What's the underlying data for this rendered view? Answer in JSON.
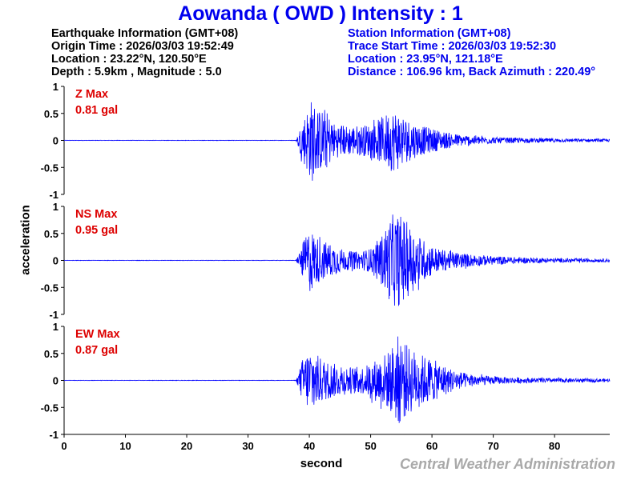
{
  "title": "Aowanda ( OWD ) Intensity : 1",
  "earthquake": {
    "header": "Earthquake Information (GMT+08)",
    "origin_time": "Origin Time : 2026/03/03 19:52:49",
    "location": "Location : 23.22°N, 120.50°E",
    "depth_magnitude": "Depth : 5.9km , Magnitude : 5.0"
  },
  "station": {
    "header": "Station Information (GMT+08)",
    "trace_start": "Trace Start Time : 2026/03/03 19:52:30",
    "location": "Location : 23.95°N, 121.18°E",
    "distance": "Distance : 106.96 km, Back Azimuth : 220.49°"
  },
  "agency": "Central Weather Administration",
  "colors": {
    "title": "#0000ee",
    "trace": "#0000ff",
    "annotation": "#dd0000",
    "agency": "#a9a9a9"
  },
  "chart_data": {
    "type": "line",
    "xlabel": "second",
    "ylabel": "acceleration",
    "xlim": [
      0,
      89
    ],
    "ylim": [
      -1,
      1
    ],
    "x_ticks": [
      0,
      10,
      20,
      30,
      40,
      50,
      60,
      70,
      80
    ],
    "y_tick_labels": [
      "1",
      "0.5",
      "0",
      "-0.5",
      "-1"
    ],
    "y_tick_values": [
      1,
      0.5,
      0,
      -0.5,
      -1
    ],
    "sample_interval_s": 0.05,
    "series": [
      {
        "name": "Z",
        "label": "Z Max",
        "max_label": "0.81 gal",
        "max_gal": 0.81,
        "onset_s": 38.2,
        "envelope": [
          [
            0,
            0.004
          ],
          [
            37.8,
            0.004
          ],
          [
            38.2,
            0.12
          ],
          [
            38.8,
            0.35
          ],
          [
            40.4,
            0.8
          ],
          [
            41.5,
            0.55
          ],
          [
            42.5,
            0.6
          ],
          [
            44,
            0.33
          ],
          [
            46,
            0.28
          ],
          [
            48,
            0.28
          ],
          [
            50,
            0.3
          ],
          [
            52,
            0.45
          ],
          [
            53.5,
            0.58
          ],
          [
            54.5,
            0.55
          ],
          [
            56,
            0.4
          ],
          [
            58,
            0.28
          ],
          [
            60,
            0.22
          ],
          [
            62,
            0.16
          ],
          [
            65,
            0.1
          ],
          [
            70,
            0.06
          ],
          [
            75,
            0.045
          ],
          [
            80,
            0.035
          ],
          [
            89,
            0.025
          ]
        ]
      },
      {
        "name": "NS",
        "label": "NS Max",
        "max_label": "0.95 gal",
        "max_gal": 0.95,
        "onset_s": 38.2,
        "envelope": [
          [
            0,
            0.004
          ],
          [
            37.8,
            0.004
          ],
          [
            38.2,
            0.1
          ],
          [
            38.8,
            0.3
          ],
          [
            40.2,
            0.62
          ],
          [
            41,
            0.45
          ],
          [
            42,
            0.38
          ],
          [
            44,
            0.28
          ],
          [
            46,
            0.18
          ],
          [
            48,
            0.16
          ],
          [
            50,
            0.22
          ],
          [
            52,
            0.5
          ],
          [
            53.5,
            0.85
          ],
          [
            55,
            0.85
          ],
          [
            57,
            0.55
          ],
          [
            59,
            0.35
          ],
          [
            61,
            0.22
          ],
          [
            63,
            0.17
          ],
          [
            66,
            0.12
          ],
          [
            70,
            0.08
          ],
          [
            75,
            0.055
          ],
          [
            80,
            0.04
          ],
          [
            89,
            0.03
          ]
        ]
      },
      {
        "name": "EW",
        "label": "EW Max",
        "max_label": "0.87 gal",
        "max_gal": 0.87,
        "onset_s": 38.2,
        "envelope": [
          [
            0,
            0.004
          ],
          [
            37.8,
            0.004
          ],
          [
            38.2,
            0.12
          ],
          [
            38.8,
            0.38
          ],
          [
            40.3,
            0.65
          ],
          [
            41.5,
            0.45
          ],
          [
            43,
            0.35
          ],
          [
            45,
            0.28
          ],
          [
            47,
            0.25
          ],
          [
            49,
            0.26
          ],
          [
            51,
            0.4
          ],
          [
            53,
            0.55
          ],
          [
            54.5,
            0.85
          ],
          [
            56,
            0.65
          ],
          [
            58,
            0.5
          ],
          [
            60,
            0.4
          ],
          [
            62,
            0.28
          ],
          [
            64,
            0.18
          ],
          [
            66,
            0.12
          ],
          [
            70,
            0.07
          ],
          [
            75,
            0.05
          ],
          [
            80,
            0.04
          ],
          [
            89,
            0.03
          ]
        ]
      }
    ]
  }
}
